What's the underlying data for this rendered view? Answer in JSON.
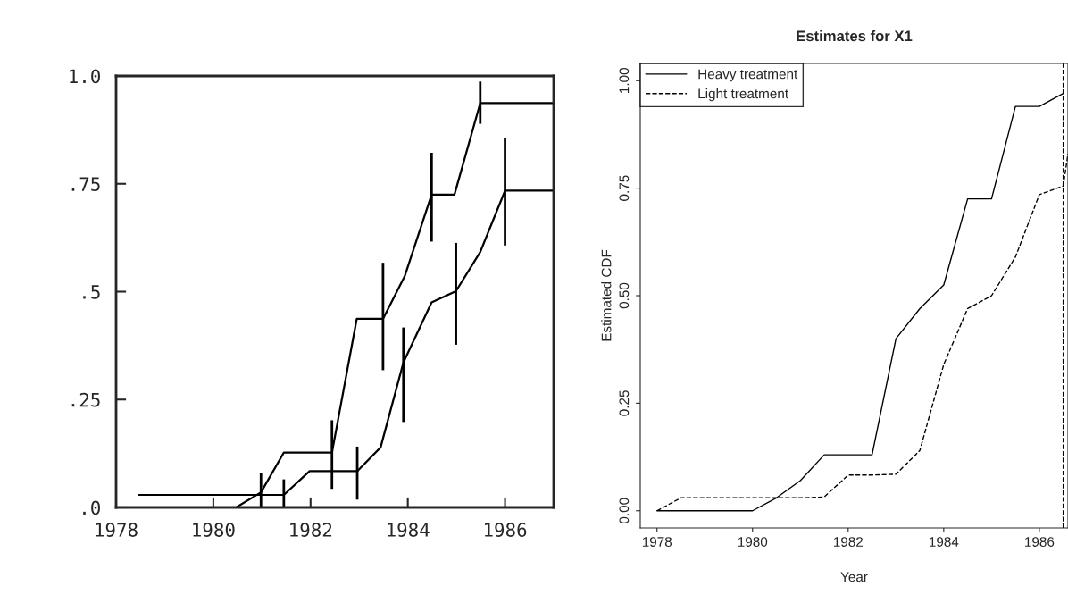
{
  "chart_data": [
    {
      "type": "line",
      "xlim": [
        1978,
        1987
      ],
      "ylim": [
        0,
        1.0
      ],
      "xticks": [
        1978,
        1980,
        1982,
        1984,
        1986
      ],
      "yticks": [
        {
          "value": 0,
          "label": ".0"
        },
        {
          "value": 0.25,
          "label": ".25"
        },
        {
          "value": 0.5,
          "label": ".5"
        },
        {
          "value": 0.75,
          "label": ".75"
        },
        {
          "value": 1.0,
          "label": "1.0"
        }
      ],
      "line_style": "solid",
      "series": [
        {
          "color": "#000000",
          "x": [
            1980.47,
            1980.98,
            1981.45,
            1982.44,
            1982.95,
            1983.49,
            1983.94,
            1984.49,
            1984.96,
            1985.49,
            1987
          ],
          "values": [
            0,
            0.035,
            0.127,
            0.127,
            0.437,
            0.437,
            0.537,
            0.725,
            0.725,
            0.937,
            0.937
          ],
          "errors": [
            null,
            [
              0.0,
              0.08
            ],
            null,
            [
              0.043,
              0.202
            ],
            null,
            [
              0.318,
              0.567
            ],
            null,
            [
              0.616,
              0.822
            ],
            null,
            [
              0.889,
              0.987
            ],
            null
          ]
        },
        {
          "color": "#000000",
          "x": [
            1978.47,
            1981.45,
            1981.98,
            1982.96,
            1983.44,
            1983.91,
            1984.49,
            1984.99,
            1985.49,
            1986.0,
            1987
          ],
          "values": [
            0.029,
            0.029,
            0.084,
            0.084,
            0.139,
            0.336,
            0.475,
            0.501,
            0.592,
            0.734,
            0.734
          ],
          "errors": [
            null,
            [
              0.0,
              0.065
            ],
            null,
            [
              0.018,
              0.141
            ],
            null,
            [
              0.198,
              0.417
            ],
            null,
            [
              0.377,
              0.613
            ],
            null,
            [
              0.607,
              0.857
            ],
            null
          ]
        }
      ]
    },
    {
      "type": "line",
      "title": "Estimates for X1",
      "xlabel": "Year",
      "ylabel": "Estimated CDF",
      "xlim": [
        1977.65,
        1986.6
      ],
      "ylim": [
        -0.04,
        1.04
      ],
      "xticks": [
        1978,
        1980,
        1982,
        1984,
        1986
      ],
      "yticks": [
        {
          "value": 0,
          "label": "0.00"
        },
        {
          "value": 0.25,
          "label": "0.25"
        },
        {
          "value": 0.5,
          "label": "0.50"
        },
        {
          "value": 0.75,
          "label": "0.75"
        },
        {
          "value": 1.0,
          "label": "1.00"
        }
      ],
      "legend": "top left",
      "ref_lines": [
        {
          "axis": "x",
          "value": 1986.5,
          "color": "#000000",
          "line_style": "dashed"
        }
      ],
      "series": [
        {
          "name": "Heavy treatment",
          "color": "#000000",
          "line_style": "solid",
          "x": [
            1978,
            1980,
            1980.5,
            1981,
            1981.5,
            1982.5,
            1983,
            1983.5,
            1984,
            1984.5,
            1985,
            1985.5,
            1986,
            1986.5
          ],
          "values": [
            0,
            0,
            0.03,
            0.07,
            0.13,
            0.13,
            0.4,
            0.47,
            0.525,
            0.725,
            0.725,
            0.94,
            0.94,
            0.97
          ]
        },
        {
          "name": "Light treatment",
          "color": "#000000",
          "line_style": "dashed",
          "x": [
            1978,
            1978.5,
            1981,
            1981.5,
            1982,
            1982.5,
            1983,
            1983.5,
            1984,
            1984.5,
            1985,
            1985.5,
            1986,
            1986.5,
            1986.6
          ],
          "values": [
            0,
            0.03,
            0.03,
            0.032,
            0.083,
            0.083,
            0.085,
            0.14,
            0.34,
            0.47,
            0.5,
            0.59,
            0.735,
            0.755,
            0.83
          ]
        }
      ]
    }
  ]
}
